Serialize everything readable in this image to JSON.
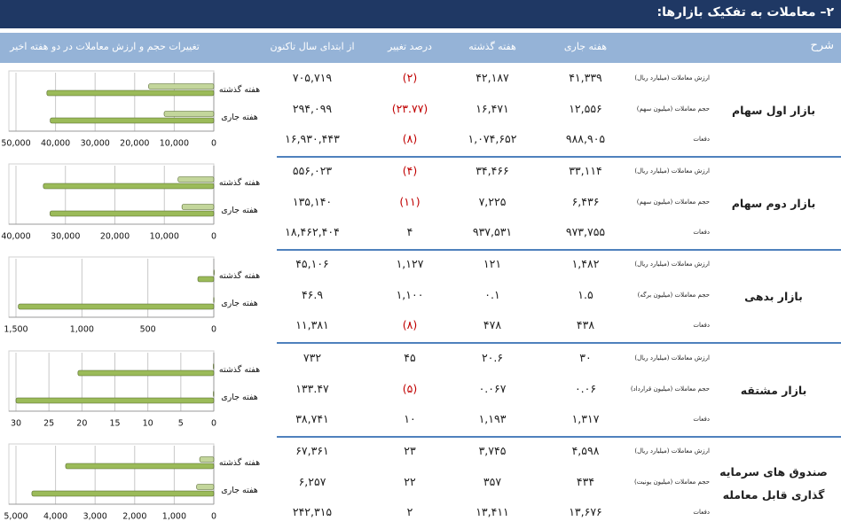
{
  "title": "۲– معاملات به تفکیک بازارها:",
  "table": {
    "header": [
      "شرح",
      "هفته جاری",
      "هفته گذشته",
      "درصد تغییر",
      "از ابتدای سال تاکنون",
      "تغییرات حجم و ارزش معاملات در دو هفته اخیر"
    ],
    "markets": [
      {
        "name": "بازار اول سهام",
        "rows": [
          {
            "metric": "ارزش معاملات (میلیارد ریال)",
            "cells": [
              "۴۱,۳۳۹",
              "۴۲,۱۸۷",
              "(۲)",
              "۷۰۵,۷۱۹"
            ]
          },
          {
            "metric": "حجم معاملات (میلیون سهم)",
            "cells": [
              "۱۲,۵۵۶",
              "۱۶,۴۷۱",
              "(۲۳.۷۷)",
              "۲۹۴,۰۹۹"
            ]
          },
          {
            "metric": "دفعات",
            "cells": [
              "۹۸۸,۹۰۵",
              "۱,۰۷۴,۶۵۲",
              "(۸)",
              "۱۶,۹۳۰,۴۴۳"
            ]
          }
        ]
      },
      {
        "name": "بازار دوم سهام",
        "rows": [
          {
            "metric": "ارزش معاملات (میلیارد ریال)",
            "cells": [
              "۳۳,۱۱۴",
              "۳۴,۴۶۶",
              "(۴)",
              "۵۵۶,۰۲۳"
            ]
          },
          {
            "metric": "حجم معاملات (میلیون سهم)",
            "cells": [
              "۶,۴۳۶",
              "۷,۲۲۵",
              "(۱۱)",
              "۱۳۵,۱۴۰"
            ]
          },
          {
            "metric": "دفعات",
            "cells": [
              "۹۷۳,۷۵۵",
              "۹۳۷,۵۳۱",
              "۴",
              "۱۸,۴۶۲,۴۰۴"
            ]
          }
        ]
      },
      {
        "name": "بازار بدهی",
        "rows": [
          {
            "metric": "ارزش معاملات (میلیارد ریال)",
            "cells": [
              "۱,۴۸۲",
              "۱۲۱",
              "۱,۱۲۷",
              "۴۵,۱۰۶"
            ]
          },
          {
            "metric": "حجم معاملات (میلیون برگه)",
            "cells": [
              "۱.۵",
              "۰.۱",
              "۱,۱۰۰",
              "۴۶.۹"
            ]
          },
          {
            "metric": "دفعات",
            "cells": [
              "۴۳۸",
              "۴۷۸",
              "(۸)",
              "۱۱,۳۸۱"
            ]
          }
        ]
      },
      {
        "name": "بازار مشتقه",
        "rows": [
          {
            "metric": "ارزش معاملات (میلیارد ریال)",
            "cells": [
              "۳۰",
              "۲۰.۶",
              "۴۵",
              "۷۳۲"
            ]
          },
          {
            "metric": "حجم معاملات (میلیون قرارداد)",
            "cells": [
              "۰.۰۶",
              "۰.۰۶۷",
              "(۵)",
              "۱۳۳.۴۷"
            ]
          },
          {
            "metric": "دفعات",
            "cells": [
              "۱,۳۱۷",
              "۱,۱۹۳",
              "۱۰",
              "۳۸,۷۴۱"
            ]
          }
        ]
      },
      {
        "name": "صندوق های سرمایه گذاری قابل معامله",
        "rows": [
          {
            "metric": "ارزش معاملات (میلیارد ریال)",
            "cells": [
              "۴,۵۹۸",
              "۳,۷۴۵",
              "۲۳",
              "۶۷,۳۶۱"
            ]
          },
          {
            "metric": "حجم معاملات (میلیون یونیت)",
            "cells": [
              "۴۳۴",
              "۳۵۷",
              "۲۲",
              "۶,۲۵۷"
            ]
          },
          {
            "metric": "دفعات",
            "cells": [
              "۱۳,۶۷۶",
              "۱۳,۴۱۱",
              "۲",
              "۲۴۲,۳۱۵"
            ]
          }
        ]
      }
    ]
  },
  "chart_data": [
    {
      "type": "bar",
      "orientation": "horizontal",
      "x_reversed": true,
      "grid": true,
      "categories": [
        "هفته گذشته",
        "هفته جاری"
      ],
      "series": [
        {
          "color": "#c3d69b",
          "values": [
            16471,
            12556
          ]
        },
        {
          "color": "#9bbb59",
          "values": [
            42187,
            41339
          ]
        }
      ],
      "xlim": [
        0,
        50000
      ],
      "xticks": [
        0,
        {
          "value": 10000,
          "label": "10,000"
        },
        {
          "value": 20000,
          "label": "20,000"
        },
        {
          "value": 30000,
          "label": "30,000"
        },
        {
          "value": 40000,
          "label": "40,000"
        },
        {
          "value": 50000,
          "label": "50,000"
        }
      ]
    },
    {
      "type": "bar",
      "orientation": "horizontal",
      "x_reversed": true,
      "grid": true,
      "categories": [
        "هفته گذشته",
        "هفته جاری"
      ],
      "series": [
        {
          "color": "#c3d69b",
          "values": [
            7225,
            6436
          ]
        },
        {
          "color": "#9bbb59",
          "values": [
            34466,
            33114
          ]
        }
      ],
      "xlim": [
        0,
        40000
      ],
      "xticks": [
        0,
        {
          "value": 10000,
          "label": "10,000"
        },
        {
          "value": 20000,
          "label": "20,000"
        },
        {
          "value": 30000,
          "label": "30,000"
        },
        {
          "value": 40000,
          "label": "40,000"
        }
      ]
    },
    {
      "type": "bar",
      "orientation": "horizontal",
      "x_reversed": true,
      "grid": true,
      "categories": [
        "هفته گذشته",
        "هفته جاری"
      ],
      "series": [
        {
          "color": "#c3d69b",
          "values": [
            0.1,
            1.5
          ]
        },
        {
          "color": "#9bbb59",
          "values": [
            121,
            1482
          ]
        }
      ],
      "xlim": [
        0,
        1500
      ],
      "xticks": [
        0,
        500,
        {
          "value": 1000,
          "label": "1,000"
        },
        {
          "value": 1500,
          "label": "1,500"
        }
      ]
    },
    {
      "type": "bar",
      "orientation": "horizontal",
      "x_reversed": true,
      "grid": true,
      "categories": [
        "هفته گذشته",
        "هفته جاری"
      ],
      "series": [
        {
          "color": "#c3d69b",
          "values": [
            0.067,
            0.06
          ]
        },
        {
          "color": "#9bbb59",
          "values": [
            20.6,
            30
          ]
        }
      ],
      "xlim": [
        0,
        30
      ],
      "xticks": [
        0,
        5,
        10,
        15,
        20,
        25,
        30
      ]
    },
    {
      "type": "bar",
      "orientation": "horizontal",
      "x_reversed": true,
      "grid": true,
      "categories": [
        "هفته گذشته",
        "هفته جاری"
      ],
      "series": [
        {
          "color": "#c3d69b",
          "values": [
            357,
            434
          ]
        },
        {
          "color": "#9bbb59",
          "values": [
            3745,
            4598
          ]
        }
      ],
      "xlim": [
        0,
        5000
      ],
      "xticks": [
        0,
        {
          "value": 1000,
          "label": "1,000"
        },
        {
          "value": 2000,
          "label": "2,000"
        },
        {
          "value": 3000,
          "label": "3,000"
        },
        {
          "value": 4000,
          "label": "4,000"
        },
        {
          "value": 5000,
          "label": "5,000"
        }
      ]
    }
  ]
}
